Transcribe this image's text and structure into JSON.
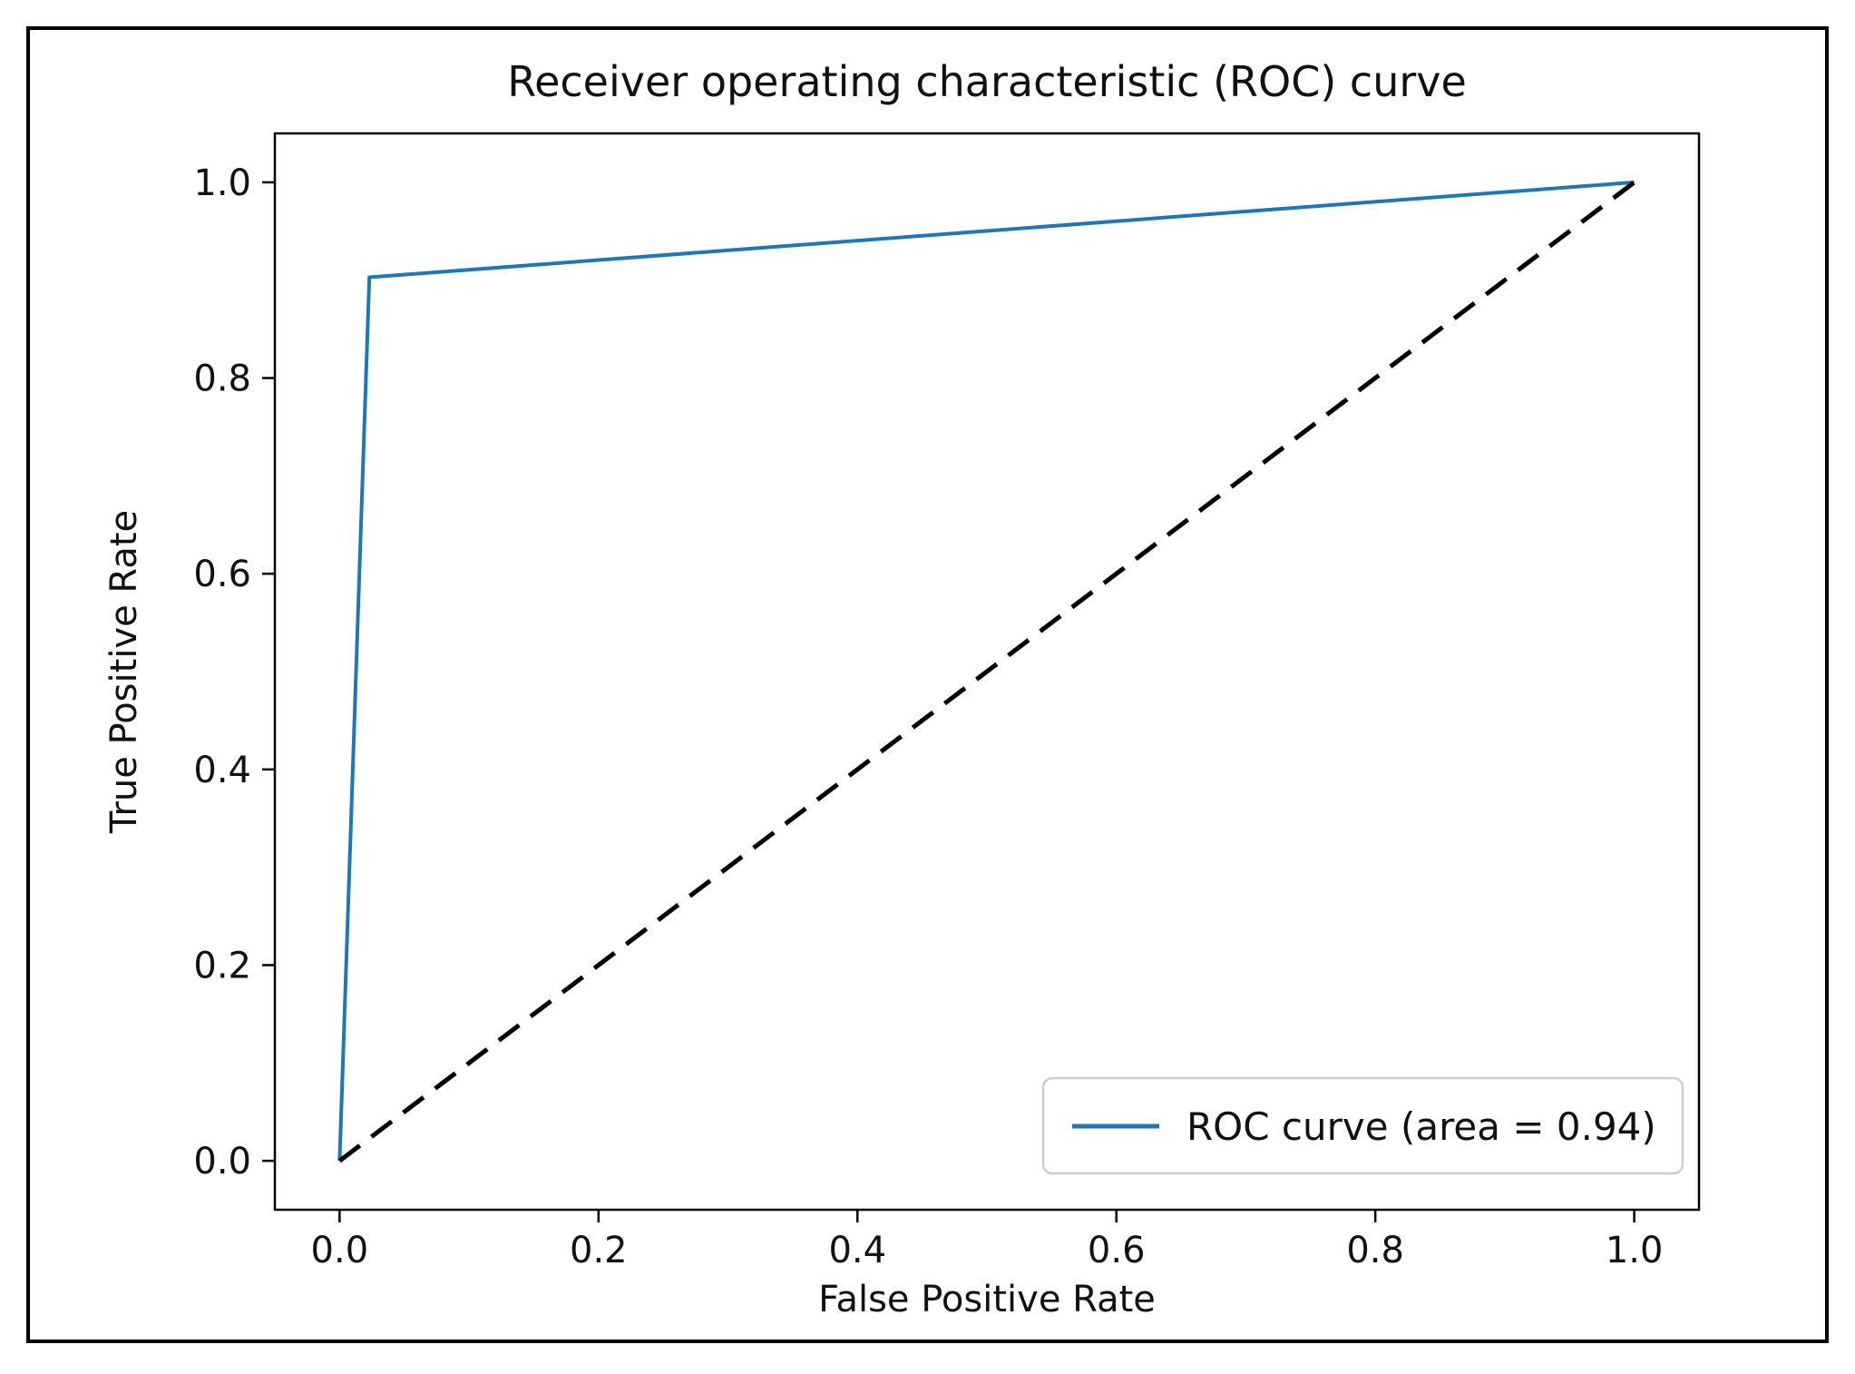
{
  "chart_data": {
    "type": "line",
    "title": "Receiver operating characteristic (ROC) curve",
    "xlabel": "False Positive Rate",
    "ylabel": "True Positive Rate",
    "xlim": [
      -0.05,
      1.05
    ],
    "ylim": [
      -0.05,
      1.05
    ],
    "x_ticks": [
      0.0,
      0.2,
      0.4,
      0.6,
      0.8,
      1.0
    ],
    "x_tick_labels": [
      "0.0",
      "0.2",
      "0.4",
      "0.6",
      "0.8",
      "1.0"
    ],
    "y_ticks": [
      0.0,
      0.2,
      0.4,
      0.6,
      0.8,
      1.0
    ],
    "y_tick_labels": [
      "0.0",
      "0.2",
      "0.4",
      "0.6",
      "0.8",
      "1.0"
    ],
    "grid": false,
    "legend_position": "lower right",
    "auc": 0.94,
    "series": [
      {
        "name": "ROC curve (area = 0.94)",
        "color": "#1f77b4",
        "style": "solid",
        "in_legend": true,
        "x": [
          0.0,
          0.023,
          1.0
        ],
        "y": [
          0.0,
          0.903,
          1.0
        ]
      },
      {
        "name": "chance-diagonal",
        "color": "#000000",
        "style": "dashed",
        "in_legend": false,
        "x": [
          0.0,
          1.0
        ],
        "y": [
          0.0,
          1.0
        ]
      }
    ],
    "legend": {
      "entries": [
        {
          "label": "ROC curve (area = 0.94)",
          "color": "#1f77b4"
        }
      ]
    },
    "colors": {
      "roc_line": "#1f77b4",
      "chance_line": "#000000",
      "spine": "#000000",
      "figure_border": "#000000",
      "legend_border": "#cccccc"
    }
  }
}
